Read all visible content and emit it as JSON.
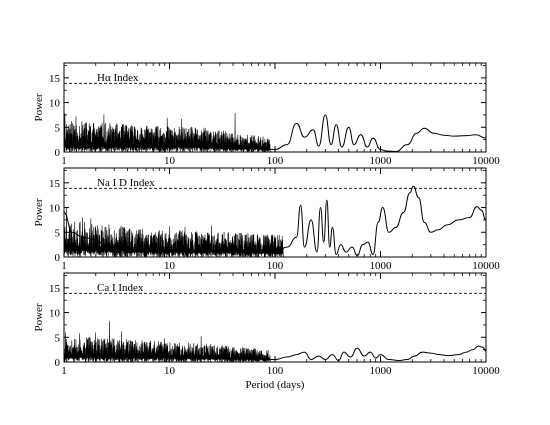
{
  "chart_data": [
    {
      "type": "line",
      "panel_label": "Hα Index",
      "xlabel": "",
      "ylabel": "Power",
      "xscale": "log",
      "xlim": [
        1,
        10000
      ],
      "ylim": [
        0,
        18
      ],
      "xticks": [
        1,
        10,
        100,
        1000,
        10000
      ],
      "xtick_labels": [
        "1",
        "10",
        "100",
        "1000",
        "10000"
      ],
      "yticks": [
        0,
        5,
        10,
        15
      ],
      "ytick_labels": [
        "0",
        "5",
        "10",
        "15"
      ],
      "threshold": 13.9,
      "series": [
        {
          "x": [
            1.0,
            1.2,
            1.5,
            2.0,
            2.5,
            3.0,
            4.0,
            5.0,
            7.0,
            10.0,
            15.0,
            20.0,
            30.0,
            40.0,
            50.0,
            70.0,
            100.0,
            130.0,
            160.0,
            190.0,
            230.0,
            260.0,
            300.0,
            340.0,
            380.0,
            430.0,
            500.0,
            560.0,
            650.0,
            750.0,
            850.0,
            1000.0,
            1150.0,
            1400.0,
            1800.0,
            2200.0,
            2600.0,
            3200.0,
            4000.0,
            5000.0,
            6500.0,
            8000.0,
            10000.0
          ],
          "y": [
            1.2,
            0.8,
            1.0,
            1.5,
            1.1,
            1.3,
            1.4,
            1.2,
            1.0,
            0.9,
            1.1,
            0.9,
            0.8,
            1.0,
            1.2,
            0.7,
            0.5,
            1.5,
            5.8,
            3.0,
            4.5,
            1.2,
            7.5,
            1.5,
            5.5,
            1.0,
            5.0,
            1.5,
            3.5,
            1.0,
            2.8,
            0.5,
            0.2,
            0.1,
            1.5,
            3.8,
            4.8,
            3.8,
            3.4,
            3.2,
            3.3,
            3.5,
            2.8
          ]
        }
      ],
      "noise": {
        "x_end": 90,
        "seed": 11,
        "envelope": [
          [
            1,
            6.5
          ],
          [
            5,
            5.5
          ],
          [
            20,
            5.0
          ],
          [
            40,
            4.0
          ],
          [
            90,
            3.0
          ]
        ],
        "spikes": [
          [
            1.02,
            7.8
          ],
          [
            1.3,
            7.2
          ],
          [
            2.4,
            7.6
          ],
          [
            9.5,
            6.9
          ],
          [
            13.0,
            6.7
          ],
          [
            42.0,
            7.9
          ]
        ]
      }
    },
    {
      "type": "line",
      "panel_label": "Na I D Index",
      "xlabel": "",
      "ylabel": "Power",
      "xscale": "log",
      "xlim": [
        1,
        10000
      ],
      "ylim": [
        0,
        18
      ],
      "xticks": [
        1,
        10,
        100,
        1000,
        10000
      ],
      "xtick_labels": [
        "1",
        "10",
        "100",
        "1000",
        "10000"
      ],
      "yticks": [
        0,
        5,
        10,
        15
      ],
      "ytick_labels": [
        "0",
        "5",
        "10",
        "15"
      ],
      "threshold": 13.9,
      "series": [
        {
          "x": [
            1.0,
            1.2,
            1.5,
            2.0,
            2.5,
            3.0,
            4.0,
            5.0,
            7.0,
            10.0,
            15.0,
            20.0,
            30.0,
            40.0,
            50.0,
            70.0,
            100.0,
            130.0,
            160.0,
            175.0,
            190.0,
            220.0,
            250.0,
            270.0,
            290.0,
            310.0,
            330.0,
            350.0,
            380.0,
            420.0,
            470.0,
            540.0,
            600.0,
            680.0,
            760.0,
            850.0,
            950.0,
            1050.0,
            1200.0,
            1400.0,
            1650.0,
            1900.0,
            2050.0,
            2300.0,
            2600.0,
            3000.0,
            3500.0,
            4300.0,
            5500.0,
            7000.0,
            8200.0,
            9000.0,
            10000.0
          ],
          "y": [
            9.0,
            5.0,
            4.0,
            3.5,
            2.0,
            2.5,
            2.0,
            1.5,
            1.2,
            1.0,
            1.5,
            1.0,
            1.2,
            1.0,
            1.5,
            1.0,
            0.8,
            2.0,
            4.0,
            10.5,
            2.0,
            7.5,
            1.0,
            10.0,
            3.0,
            11.5,
            2.0,
            6.0,
            0.5,
            2.5,
            1.0,
            2.0,
            0.3,
            2.5,
            3.0,
            0.5,
            7.0,
            10.0,
            5.0,
            6.0,
            9.0,
            13.0,
            14.3,
            12.0,
            7.0,
            5.0,
            5.5,
            6.5,
            7.5,
            8.0,
            10.2,
            9.5,
            7.5
          ]
        }
      ],
      "noise": {
        "x_end": 120,
        "seed": 23,
        "envelope": [
          [
            1,
            7.5
          ],
          [
            3,
            6.5
          ],
          [
            10,
            5.5
          ],
          [
            40,
            5.0
          ],
          [
            120,
            4.5
          ]
        ],
        "spikes": [
          [
            1.05,
            10.0
          ],
          [
            1.5,
            8.0
          ],
          [
            1.8,
            7.8
          ],
          [
            10.0,
            6.2
          ],
          [
            14.0,
            6.1
          ],
          [
            25.0,
            6.4
          ]
        ]
      }
    },
    {
      "type": "line",
      "panel_label": "Ca I Index",
      "xlabel": "Period (days)",
      "ylabel": "Power",
      "xscale": "log",
      "xlim": [
        1,
        10000
      ],
      "ylim": [
        0,
        18
      ],
      "xticks": [
        1,
        10,
        100,
        1000,
        10000
      ],
      "xtick_labels": [
        "1",
        "10",
        "100",
        "1000",
        "10000"
      ],
      "yticks": [
        0,
        5,
        10,
        15
      ],
      "ytick_labels": [
        "0",
        "5",
        "10",
        "15"
      ],
      "threshold": 13.9,
      "series": [
        {
          "x": [
            1.0,
            1.2,
            1.5,
            2.0,
            2.5,
            3.0,
            4.0,
            5.0,
            7.0,
            10.0,
            15.0,
            20.0,
            30.0,
            40.0,
            50.0,
            70.0,
            100.0,
            130.0,
            160.0,
            190.0,
            220.0,
            260.0,
            300.0,
            350.0,
            400.0,
            450.0,
            520.0,
            600.0,
            700.0,
            800.0,
            900.0,
            1000.0,
            1200.0,
            1500.0,
            1800.0,
            2100.0,
            2500.0,
            3000.0,
            3600.0,
            4400.0,
            5500.0,
            6500.0,
            7500.0,
            8500.0,
            9300.0,
            10000.0
          ],
          "y": [
            1.0,
            0.8,
            1.0,
            1.2,
            1.0,
            1.1,
            1.0,
            0.9,
            1.0,
            0.8,
            0.9,
            0.8,
            0.7,
            0.8,
            0.7,
            0.6,
            0.5,
            1.0,
            1.5,
            2.0,
            0.5,
            1.2,
            0.5,
            1.5,
            0.3,
            2.0,
            1.0,
            2.8,
            1.2,
            2.0,
            0.8,
            1.5,
            0.5,
            0.3,
            0.5,
            1.2,
            2.0,
            1.8,
            1.5,
            1.3,
            1.5,
            2.0,
            2.5,
            3.2,
            3.0,
            2.2
          ]
        }
      ],
      "noise": {
        "x_end": 90,
        "seed": 37,
        "envelope": [
          [
            1,
            5.5
          ],
          [
            5,
            4.5
          ],
          [
            20,
            3.8
          ],
          [
            50,
            3.0
          ],
          [
            90,
            2.5
          ]
        ],
        "spikes": [
          [
            1.03,
            6.0
          ],
          [
            1.4,
            5.8
          ],
          [
            2.0,
            6.0
          ],
          [
            2.7,
            8.3
          ],
          [
            3.5,
            6.2
          ],
          [
            9.0,
            4.8
          ],
          [
            20.0,
            5.2
          ]
        ]
      }
    }
  ]
}
